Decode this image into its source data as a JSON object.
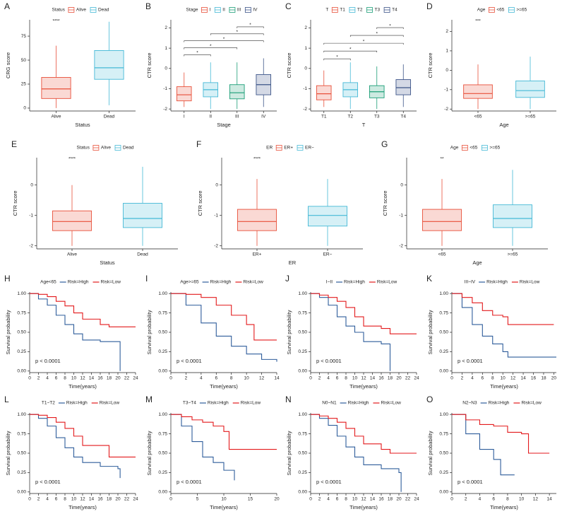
{
  "chart_data": [
    {
      "type": "box",
      "panel": "A",
      "legend_title": "Status",
      "categories": [
        "Alive",
        "Dead"
      ],
      "colors": [
        "#e8503a",
        "#45b9d6"
      ],
      "stats": [
        [
          0,
          10,
          20,
          32,
          65
        ],
        [
          3,
          30,
          42,
          60,
          90
        ]
      ],
      "annotations": [
        "****",
        null
      ],
      "ylabel": "CRG score",
      "xlabel": "Status",
      "ylim": [
        -3,
        92
      ],
      "yticks": [
        0,
        25,
        50,
        75
      ]
    },
    {
      "type": "box",
      "panel": "B",
      "legend_title": "Stage",
      "categories": [
        "I",
        "II",
        "III",
        "IV"
      ],
      "colors": [
        "#e8503a",
        "#45b9d6",
        "#1b9e77",
        "#3c5488"
      ],
      "stats": [
        [
          -1.9,
          -1.6,
          -1.3,
          -0.9,
          -0.2
        ],
        [
          -2.0,
          -1.4,
          -1.05,
          -0.7,
          0.3
        ],
        [
          -2.0,
          -1.5,
          -1.2,
          -0.8,
          0.3
        ],
        [
          -1.9,
          -1.3,
          -0.8,
          -0.3,
          0.5
        ]
      ],
      "comparisons": [
        {
          "groups": [
            "I",
            "II"
          ],
          "label": "*"
        },
        {
          "groups": [
            "I",
            "III"
          ],
          "label": "*"
        },
        {
          "groups": [
            "I",
            "IV"
          ],
          "label": "*"
        },
        {
          "groups": [
            "II",
            "IV"
          ],
          "label": "*"
        },
        {
          "groups": [
            "III",
            "IV"
          ],
          "label": "*"
        }
      ],
      "ylabel": "CTR score",
      "xlabel": "Stage",
      "ylim": [
        -2.1,
        2.4
      ],
      "yticks": [
        -2,
        -1,
        0,
        1,
        2
      ]
    },
    {
      "type": "box",
      "panel": "C",
      "legend_title": "T",
      "categories": [
        "T1",
        "T2",
        "T3",
        "T4"
      ],
      "colors": [
        "#e8503a",
        "#45b9d6",
        "#1b9e77",
        "#3c5488"
      ],
      "stats": [
        [
          -1.9,
          -1.55,
          -1.25,
          -0.85,
          -0.1
        ],
        [
          -2.0,
          -1.4,
          -1.05,
          -0.7,
          0.3
        ],
        [
          -2.0,
          -1.45,
          -1.15,
          -0.85,
          0.1
        ],
        [
          -1.9,
          -1.3,
          -0.95,
          -0.55,
          0.2
        ]
      ],
      "comparisons": [
        {
          "groups": [
            "T1",
            "T2"
          ],
          "label": "*"
        },
        {
          "groups": [
            "T1",
            "T3"
          ],
          "label": "*"
        },
        {
          "groups": [
            "T1",
            "T4"
          ],
          "label": "*"
        },
        {
          "groups": [
            "T2",
            "T4"
          ],
          "label": "*"
        },
        {
          "groups": [
            "T3",
            "T4"
          ],
          "label": "*"
        }
      ],
      "ylabel": "CTR score",
      "xlabel": "T",
      "ylim": [
        -2.1,
        2.4
      ],
      "yticks": [
        -2,
        -1,
        0,
        1,
        2
      ]
    },
    {
      "type": "box",
      "panel": "D",
      "legend_title": "Age",
      "categories": [
        "<65",
        ">=65"
      ],
      "colors": [
        "#e8503a",
        "#45b9d6"
      ],
      "stats": [
        [
          -2.0,
          -1.45,
          -1.2,
          -0.75,
          0.3
        ],
        [
          -2.0,
          -1.4,
          -1.05,
          -0.55,
          0.7
        ]
      ],
      "annotations": [
        "***",
        null
      ],
      "ylabel": "CTR score",
      "xlabel": "Age",
      "ylim": [
        -2.1,
        2.6
      ],
      "yticks": [
        -2,
        -1,
        0,
        1,
        2
      ]
    },
    {
      "type": "box",
      "panel": "E",
      "legend_title": "Status",
      "categories": [
        "Alive",
        "Dead"
      ],
      "colors": [
        "#e8503a",
        "#45b9d6"
      ],
      "stats": [
        [
          -2.0,
          -1.5,
          -1.2,
          -0.85,
          0.0
        ],
        [
          -2.0,
          -1.4,
          -1.1,
          -0.6,
          0.6
        ]
      ],
      "annotations": [
        "****",
        null
      ],
      "ylabel": "CTR score",
      "xlabel": "Status",
      "ylim": [
        -2.1,
        0.9
      ],
      "yticks": [
        -2,
        -1,
        0
      ]
    },
    {
      "type": "box",
      "panel": "F",
      "legend_title": "ER",
      "categories": [
        "ER+",
        "ER−"
      ],
      "colors": [
        "#e8503a",
        "#45b9d6"
      ],
      "stats": [
        [
          -2.0,
          -1.5,
          -1.2,
          -0.8,
          0.2
        ],
        [
          -2.0,
          -1.35,
          -1.0,
          -0.7,
          0.2
        ]
      ],
      "annotations": [
        "****",
        null
      ],
      "ylabel": "CTR score",
      "xlabel": "ER",
      "ylim": [
        -2.1,
        0.9
      ],
      "yticks": [
        -2,
        -1,
        0
      ]
    },
    {
      "type": "box",
      "panel": "G",
      "legend_title": "Age",
      "categories": [
        "<65",
        ">=65"
      ],
      "colors": [
        "#e8503a",
        "#45b9d6"
      ],
      "stats": [
        [
          -2.0,
          -1.5,
          -1.2,
          -0.8,
          0.2
        ],
        [
          -2.0,
          -1.4,
          -1.1,
          -0.65,
          0.5
        ]
      ],
      "annotations": [
        "**",
        null
      ],
      "ylabel": "CTR score",
      "xlabel": "Age",
      "ylim": [
        -2.1,
        0.9
      ],
      "yticks": [
        -2,
        -1,
        0
      ]
    },
    {
      "type": "km",
      "panel": "H",
      "legend_title": "Age<65",
      "annotation": "p < 0.0001",
      "xlabel": "Time(years)",
      "ylabel": "Survival probability",
      "series": [
        {
          "name": "Risk=High",
          "color": "#2f5d9b",
          "x": [
            0,
            2,
            4,
            6,
            8,
            10,
            12,
            16,
            18,
            20.5
          ],
          "values": [
            1,
            0.93,
            0.85,
            0.72,
            0.6,
            0.48,
            0.4,
            0.38,
            0.38,
            0
          ]
        },
        {
          "name": "Risk=Low",
          "color": "#e31a1c",
          "x": [
            0,
            2,
            4,
            6,
            8,
            10,
            12,
            16,
            18,
            24
          ],
          "values": [
            1,
            0.99,
            0.96,
            0.9,
            0.84,
            0.75,
            0.67,
            0.6,
            0.57,
            0.57
          ]
        }
      ],
      "xlim": [
        0,
        24
      ],
      "xticks": [
        0,
        2,
        4,
        6,
        8,
        10,
        12,
        14,
        16,
        18,
        20,
        22,
        24
      ],
      "ylim": [
        -0.02,
        1.02
      ],
      "yticks": [
        {
          "value": 0,
          "label": "0.00"
        },
        {
          "value": 0.25,
          "label": "0.25"
        },
        {
          "value": 0.5,
          "label": "0.50"
        },
        {
          "value": 0.75,
          "label": "0.75"
        },
        {
          "value": 1,
          "label": "1.00"
        }
      ]
    },
    {
      "type": "km",
      "panel": "I",
      "legend_title": "Age>=65",
      "annotation": "p < 0.0001",
      "xlabel": "Time(years)",
      "ylabel": "Survival probability",
      "series": [
        {
          "name": "Risk=High",
          "color": "#2f5d9b",
          "x": [
            0,
            2,
            4,
            6,
            8,
            10,
            12,
            14
          ],
          "values": [
            1,
            0.85,
            0.62,
            0.45,
            0.32,
            0.22,
            0.15,
            0.12
          ]
        },
        {
          "name": "Risk=Low",
          "color": "#e31a1c",
          "x": [
            0,
            2,
            4,
            6,
            8,
            10,
            11,
            14
          ],
          "values": [
            1,
            0.99,
            0.95,
            0.85,
            0.72,
            0.6,
            0.4,
            0.4
          ]
        }
      ],
      "xlim": [
        0,
        14
      ],
      "xticks": [
        0,
        2,
        4,
        6,
        8,
        10,
        12,
        14
      ],
      "ylim": [
        -0.02,
        1.02
      ],
      "yticks": [
        {
          "value": 0,
          "label": "0.00"
        },
        {
          "value": 0.25,
          "label": "0.25"
        },
        {
          "value": 0.5,
          "label": "0.50"
        },
        {
          "value": 0.75,
          "label": "0.75"
        },
        {
          "value": 1,
          "label": "1.00"
        }
      ]
    },
    {
      "type": "km",
      "panel": "J",
      "legend_title": "I~II",
      "annotation": "p < 0.0001",
      "xlabel": "Time(years)",
      "ylabel": "Survival probability",
      "series": [
        {
          "name": "Risk=High",
          "color": "#2f5d9b",
          "x": [
            0,
            2,
            4,
            6,
            8,
            10,
            12,
            16,
            17.5,
            18
          ],
          "values": [
            1,
            0.95,
            0.85,
            0.7,
            0.58,
            0.5,
            0.38,
            0.35,
            0.35,
            0
          ]
        },
        {
          "name": "Risk=Low",
          "color": "#e31a1c",
          "x": [
            0,
            2,
            4,
            6,
            8,
            10,
            12,
            16,
            18,
            24
          ],
          "values": [
            1,
            0.98,
            0.95,
            0.9,
            0.82,
            0.7,
            0.58,
            0.55,
            0.48,
            0.48
          ]
        }
      ],
      "xlim": [
        0,
        24
      ],
      "xticks": [
        0,
        2,
        4,
        6,
        8,
        10,
        12,
        14,
        16,
        18,
        20,
        22,
        24
      ],
      "ylim": [
        -0.02,
        1.02
      ],
      "yticks": [
        {
          "value": 0,
          "label": "0.00"
        },
        {
          "value": 0.25,
          "label": "0.25"
        },
        {
          "value": 0.5,
          "label": "0.50"
        },
        {
          "value": 0.75,
          "label": "0.75"
        },
        {
          "value": 1,
          "label": "1.00"
        }
      ]
    },
    {
      "type": "km",
      "panel": "K",
      "legend_title": "III~IV",
      "annotation": "p < 0.0001",
      "xlabel": "Time(years)",
      "ylabel": "Survival probability",
      "series": [
        {
          "name": "Risk=High",
          "color": "#2f5d9b",
          "x": [
            0,
            2,
            4,
            6,
            8,
            10,
            11,
            20.5
          ],
          "values": [
            1,
            0.82,
            0.6,
            0.45,
            0.35,
            0.25,
            0.18,
            0.18
          ]
        },
        {
          "name": "Risk=Low",
          "color": "#e31a1c",
          "x": [
            0,
            2,
            4,
            6,
            8,
            10,
            11,
            20
          ],
          "values": [
            1,
            0.95,
            0.88,
            0.78,
            0.72,
            0.7,
            0.6,
            0.6
          ]
        }
      ],
      "xlim": [
        0,
        20.5
      ],
      "xticks": [
        0,
        2,
        4,
        6,
        8,
        10,
        12,
        14,
        16,
        18,
        20
      ],
      "ylim": [
        -0.02,
        1.02
      ],
      "yticks": [
        {
          "value": 0,
          "label": "0.00"
        },
        {
          "value": 0.25,
          "label": "0.25"
        },
        {
          "value": 0.5,
          "label": "0.50"
        },
        {
          "value": 0.75,
          "label": "0.75"
        },
        {
          "value": 1,
          "label": "1.00"
        }
      ]
    },
    {
      "type": "km",
      "panel": "L",
      "legend_title": "T1~T2",
      "annotation": "p < 0.0001",
      "xlabel": "Time(years)",
      "ylabel": "Survival probability",
      "series": [
        {
          "name": "Risk=High",
          "color": "#2f5d9b",
          "x": [
            0,
            2,
            4,
            6,
            8,
            10,
            12,
            16,
            20,
            20.5
          ],
          "values": [
            1,
            0.95,
            0.85,
            0.7,
            0.57,
            0.45,
            0.38,
            0.33,
            0.3,
            0.18
          ]
        },
        {
          "name": "Risk=Low",
          "color": "#e31a1c",
          "x": [
            0,
            2,
            4,
            6,
            8,
            10,
            12,
            18,
            24
          ],
          "values": [
            1,
            0.99,
            0.96,
            0.9,
            0.82,
            0.72,
            0.6,
            0.45,
            0.45
          ]
        }
      ],
      "xlim": [
        0,
        24
      ],
      "xticks": [
        0,
        2,
        4,
        6,
        8,
        10,
        12,
        14,
        16,
        18,
        20,
        22,
        24
      ],
      "ylim": [
        -0.02,
        1.02
      ],
      "yticks": [
        {
          "value": 0,
          "label": "0.00"
        },
        {
          "value": 0.25,
          "label": "0.25"
        },
        {
          "value": 0.5,
          "label": "0.50"
        },
        {
          "value": 0.75,
          "label": "0.75"
        },
        {
          "value": 1,
          "label": "1.00"
        }
      ]
    },
    {
      "type": "km",
      "panel": "M",
      "legend_title": "T3~T4",
      "annotation": "p < 0.0001",
      "xlabel": "Time(years)",
      "ylabel": "Survival probability",
      "series": [
        {
          "name": "Risk=High",
          "color": "#2f5d9b",
          "x": [
            0,
            2,
            4,
            6,
            8,
            10,
            12
          ],
          "values": [
            1,
            0.85,
            0.65,
            0.45,
            0.38,
            0.28,
            0.15
          ]
        },
        {
          "name": "Risk=Low",
          "color": "#e31a1c",
          "x": [
            0,
            2,
            4,
            6,
            8,
            10,
            11,
            20
          ],
          "values": [
            1,
            0.97,
            0.93,
            0.9,
            0.85,
            0.78,
            0.55,
            0.55
          ]
        }
      ],
      "xlim": [
        0,
        20
      ],
      "xticks": [
        0,
        5,
        10,
        15,
        20
      ],
      "ylim": [
        -0.02,
        1.02
      ],
      "yticks": [
        {
          "value": 0,
          "label": "0.00"
        },
        {
          "value": 0.25,
          "label": "0.25"
        },
        {
          "value": 0.5,
          "label": "0.50"
        },
        {
          "value": 0.75,
          "label": "0.75"
        },
        {
          "value": 1,
          "label": "1.00"
        }
      ]
    },
    {
      "type": "km",
      "panel": "N",
      "legend_title": "N0~N1",
      "annotation": "p < 0.0001",
      "xlabel": "Time(years)",
      "ylabel": "Survival probability",
      "series": [
        {
          "name": "Risk=High",
          "color": "#2f5d9b",
          "x": [
            0,
            2,
            4,
            6,
            8,
            10,
            12,
            16,
            20,
            20.5
          ],
          "values": [
            1,
            0.95,
            0.86,
            0.72,
            0.58,
            0.45,
            0.35,
            0.3,
            0.25,
            0
          ]
        },
        {
          "name": "Risk=Low",
          "color": "#e31a1c",
          "x": [
            0,
            2,
            4,
            6,
            8,
            10,
            12,
            16,
            18,
            24
          ],
          "values": [
            1,
            0.98,
            0.95,
            0.9,
            0.82,
            0.72,
            0.62,
            0.55,
            0.5,
            0.5
          ]
        }
      ],
      "xlim": [
        0,
        24
      ],
      "xticks": [
        0,
        2,
        4,
        6,
        8,
        10,
        12,
        14,
        16,
        18,
        20,
        22,
        24
      ],
      "ylim": [
        -0.02,
        1.02
      ],
      "yticks": [
        {
          "value": 0,
          "label": "0.00"
        },
        {
          "value": 0.25,
          "label": "0.25"
        },
        {
          "value": 0.5,
          "label": "0.50"
        },
        {
          "value": 0.75,
          "label": "0.75"
        },
        {
          "value": 1,
          "label": "1.00"
        }
      ]
    },
    {
      "type": "km",
      "panel": "O",
      "legend_title": "N2~N3",
      "annotation": "p < 0.0001",
      "xlabel": "Time(years)",
      "ylabel": "Survival probability",
      "series": [
        {
          "name": "Risk=High",
          "color": "#2f5d9b",
          "x": [
            0,
            2,
            4,
            6,
            7,
            8,
            9
          ],
          "values": [
            1,
            0.75,
            0.55,
            0.42,
            0.22,
            0.22,
            0.22
          ]
        },
        {
          "name": "Risk=Low",
          "color": "#e31a1c",
          "x": [
            0,
            2,
            4,
            6,
            8,
            10,
            11,
            14
          ],
          "values": [
            1,
            0.93,
            0.87,
            0.85,
            0.77,
            0.75,
            0.5,
            0.5
          ]
        }
      ],
      "xlim": [
        0,
        15
      ],
      "xticks": [
        0,
        2,
        4,
        6,
        8,
        10,
        12,
        14
      ],
      "ylim": [
        -0.02,
        1.02
      ],
      "yticks": [
        {
          "value": 0,
          "label": "0.00"
        },
        {
          "value": 0.25,
          "label": "0.25"
        },
        {
          "value": 0.5,
          "label": "0.50"
        },
        {
          "value": 0.75,
          "label": "0.75"
        },
        {
          "value": 1,
          "label": "1.00"
        }
      ]
    }
  ]
}
